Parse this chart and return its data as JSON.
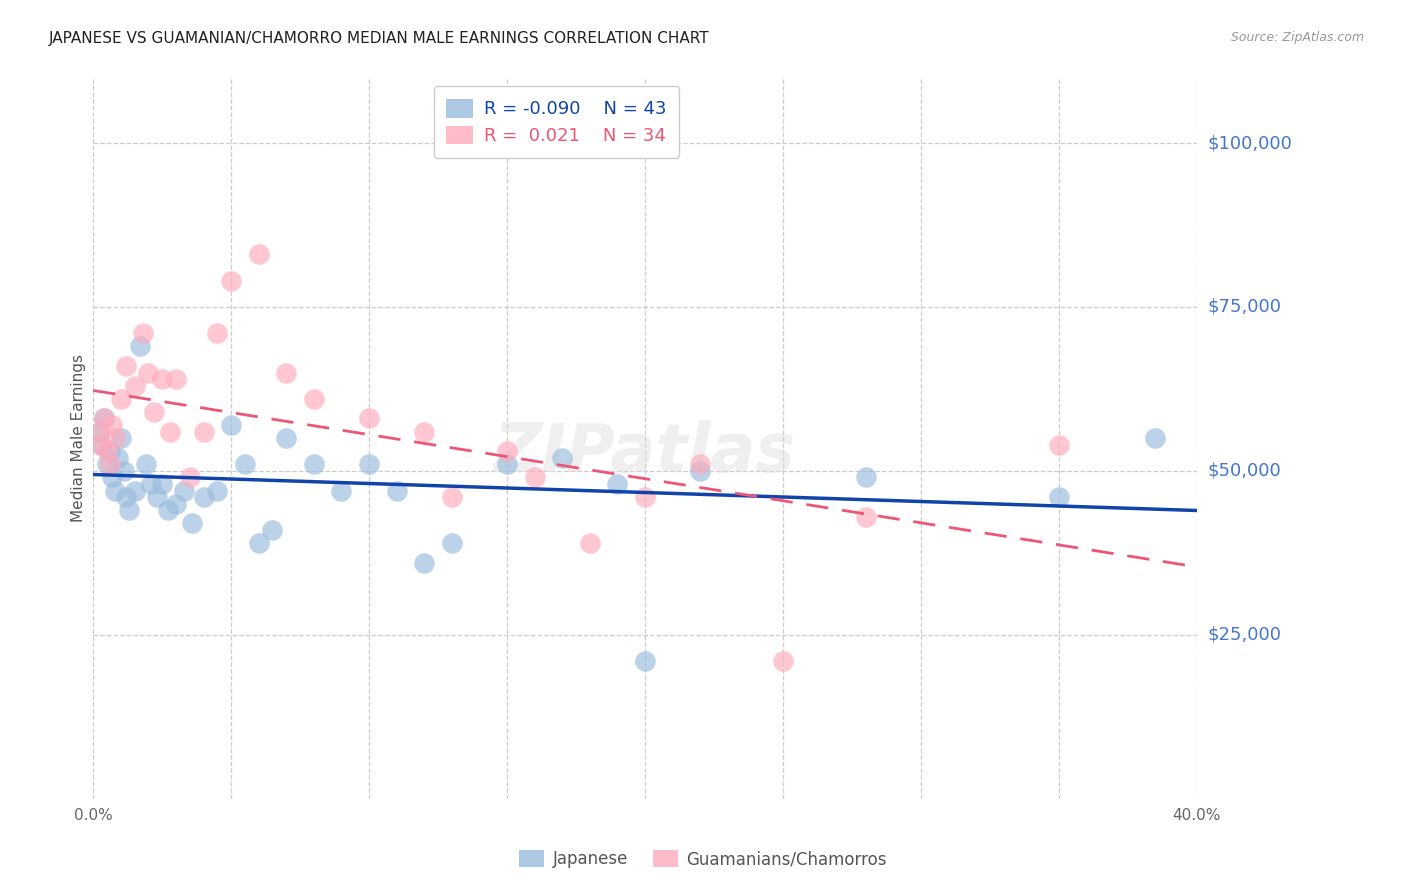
{
  "title": "JAPANESE VS GUAMANIAN/CHAMORRO MEDIAN MALE EARNINGS CORRELATION CHART",
  "source": "Source: ZipAtlas.com",
  "ylabel": "Median Male Earnings",
  "xlim": [
    0.0,
    0.4
  ],
  "ylim": [
    0,
    110000
  ],
  "japanese_R": -0.09,
  "japanese_N": 43,
  "guam_R": 0.021,
  "guam_N": 34,
  "blue_scatter": "#99BBDD",
  "pink_scatter": "#FFAABB",
  "blue_line": "#1144AA",
  "pink_line": "#EE5577",
  "title_color": "#222222",
  "source_color": "#999999",
  "axis_color": "#4477CC",
  "ylabel_color": "#555555",
  "grid_color": "#CCCCCC",
  "background": "#FFFFFF",
  "japanese_x": [
    0.002,
    0.003,
    0.004,
    0.005,
    0.006,
    0.007,
    0.008,
    0.009,
    0.01,
    0.011,
    0.012,
    0.013,
    0.015,
    0.017,
    0.019,
    0.021,
    0.023,
    0.025,
    0.027,
    0.03,
    0.033,
    0.036,
    0.04,
    0.045,
    0.05,
    0.055,
    0.06,
    0.065,
    0.07,
    0.08,
    0.09,
    0.1,
    0.11,
    0.12,
    0.13,
    0.15,
    0.17,
    0.19,
    0.2,
    0.22,
    0.28,
    0.35,
    0.385
  ],
  "japanese_y": [
    56000,
    54000,
    58000,
    51000,
    53000,
    49000,
    47000,
    52000,
    55000,
    50000,
    46000,
    44000,
    47000,
    69000,
    51000,
    48000,
    46000,
    48000,
    44000,
    45000,
    47000,
    42000,
    46000,
    47000,
    57000,
    51000,
    39000,
    41000,
    55000,
    51000,
    47000,
    51000,
    47000,
    36000,
    39000,
    51000,
    52000,
    48000,
    21000,
    50000,
    49000,
    46000,
    55000
  ],
  "guam_x": [
    0.002,
    0.003,
    0.004,
    0.005,
    0.006,
    0.007,
    0.008,
    0.01,
    0.012,
    0.015,
    0.018,
    0.02,
    0.022,
    0.025,
    0.028,
    0.03,
    0.035,
    0.04,
    0.045,
    0.05,
    0.06,
    0.07,
    0.08,
    0.1,
    0.12,
    0.13,
    0.15,
    0.16,
    0.18,
    0.2,
    0.22,
    0.25,
    0.28,
    0.35
  ],
  "guam_y": [
    56000,
    54000,
    58000,
    53000,
    51000,
    57000,
    55000,
    61000,
    66000,
    63000,
    71000,
    65000,
    59000,
    64000,
    56000,
    64000,
    49000,
    56000,
    71000,
    79000,
    83000,
    65000,
    61000,
    58000,
    56000,
    46000,
    53000,
    49000,
    39000,
    46000,
    51000,
    21000,
    43000,
    54000
  ]
}
